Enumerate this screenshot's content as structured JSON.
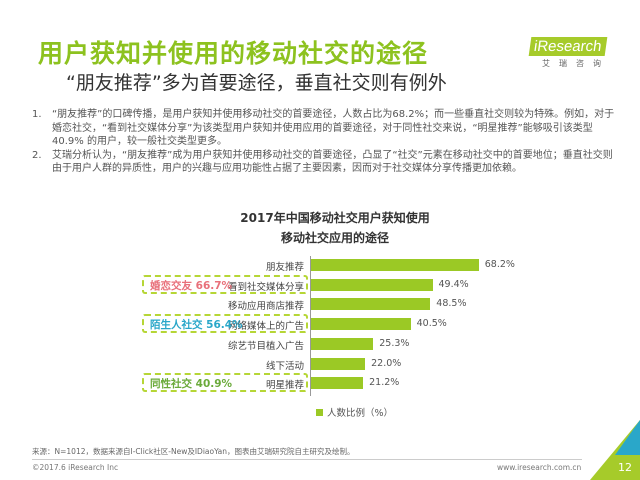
{
  "header": {
    "title": "用户获知并使用的移动社交的途径",
    "subtitle": "“朋友推荐”多为首要途径，垂直社交则有例外",
    "logo": {
      "brand": "iResearch",
      "cn": "艾瑞咨询"
    }
  },
  "bullets": [
    {
      "num": "1.",
      "text": "“朋友推荐”的口碑传播，是用户获知并使用移动社交的首要途径，人数占比为68.2%；而一些垂直社交则较为特殊。例如，对于婚恋社交，“看到社交媒体分享”为该类型用户获知并使用应用的首要途径，对于同性社交来说，“明星推荐”能够吸引该类型40.9% 的用户，较一般社交类型更多。"
    },
    {
      "num": "2.",
      "text": "艾瑞分析认为，“朋友推荐”成为用户获知并使用移动社交的首要途径，凸显了“社交”元素在移动社交中的首要地位；垂直社交则由于用户人群的异质性，用户的兴趣与应用功能性占据了主要因素，因而对于社交媒体分享传播更加依赖。"
    }
  ],
  "chart_data": {
    "type": "bar",
    "orientation": "horizontal",
    "title_line1": "2017年中国移动社交用户获知使用",
    "title_line2": "移动社交应用的途径",
    "categories": [
      "朋友推荐",
      "看到社交媒体分享",
      "移动应用商店推荐",
      "网络媒体上的广告",
      "综艺节目植入广告",
      "线下活动",
      "明星推荐"
    ],
    "values": [
      68.2,
      49.4,
      48.5,
      40.5,
      25.3,
      22.0,
      21.2
    ],
    "value_labels": [
      "68.2%",
      "49.4%",
      "48.5%",
      "40.5%",
      "25.3%",
      "22.0%",
      "21.2%"
    ],
    "legend": "人数比例（%）",
    "color": "#9bc925",
    "callouts": [
      {
        "row": 1,
        "text": "婚恋交友 66.7%",
        "color": "#e8707a"
      },
      {
        "row": 3,
        "text": "陌生人社交 56.4%",
        "color": "#2aa7c9"
      },
      {
        "row": 6,
        "text": "同性社交 40.9%",
        "color": "#6aaa3a"
      }
    ]
  },
  "footer": {
    "source": "来源：N=1012，数据来源自I-Click社区-New及IDiaoYan，图表由艾瑞研究院自主研究及绘制。",
    "copyright": "©2017.6 iResearch Inc",
    "url": "www.iresearch.com.cn",
    "page": "12"
  }
}
